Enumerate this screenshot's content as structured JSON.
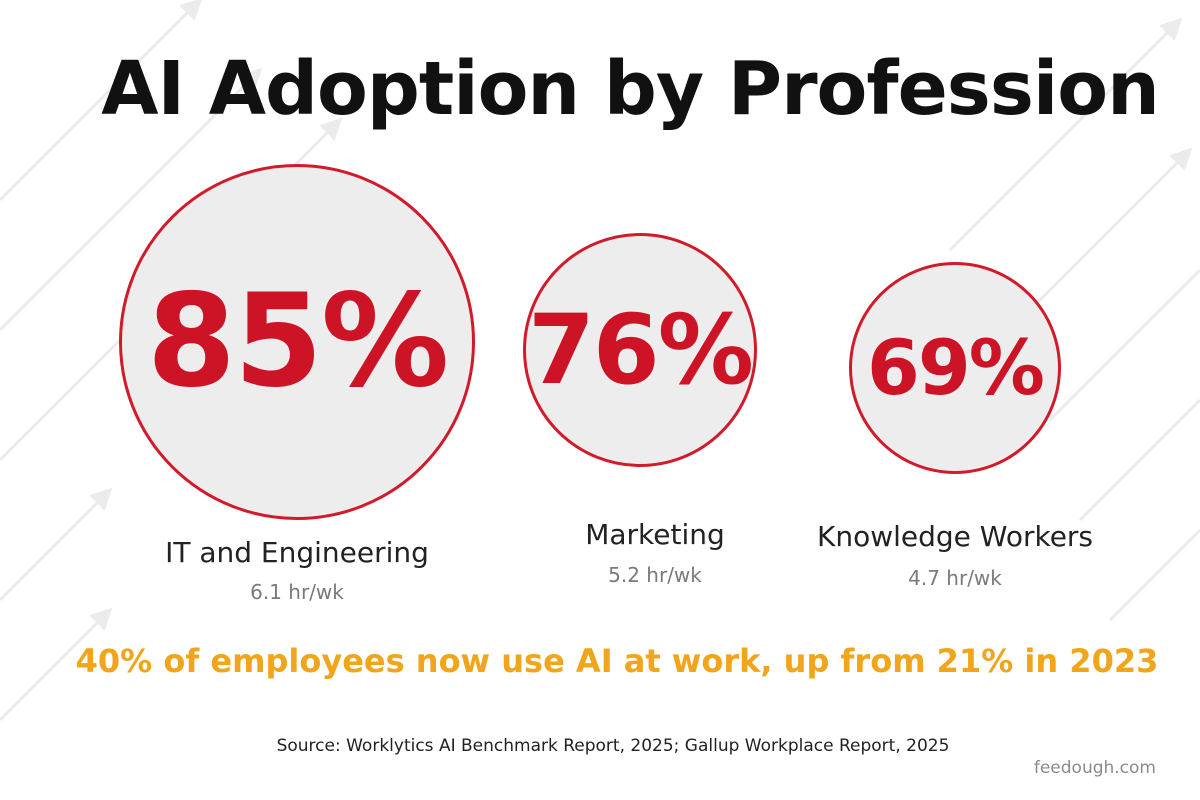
{
  "title": "AI Adoption by Profession",
  "chart_data": {
    "type": "bubble",
    "unit": "%",
    "categories": [
      "IT and Engineering",
      "Marketing",
      "Knowledge Workers"
    ],
    "values": [
      85,
      76,
      69
    ],
    "value_labels": [
      "85%",
      "76%",
      "69%"
    ],
    "hours_per_week": [
      "6.1 hr/wk",
      "5.2 hr/wk",
      "4.7 hr/wk"
    ]
  },
  "headline": "40% of employees now use AI at work, up from 21% in 2023",
  "source": "Source: Worklytics AI Benchmark Report, 2025; Gallup Workplace Report, 2025",
  "credit": "feedough.com",
  "colors": {
    "accent_red": "#cc1426",
    "circle_fill": "#ededed",
    "headline_gold": "#f0a51a",
    "text_dark": "#111111",
    "text_grey": "#7a7a7a"
  }
}
